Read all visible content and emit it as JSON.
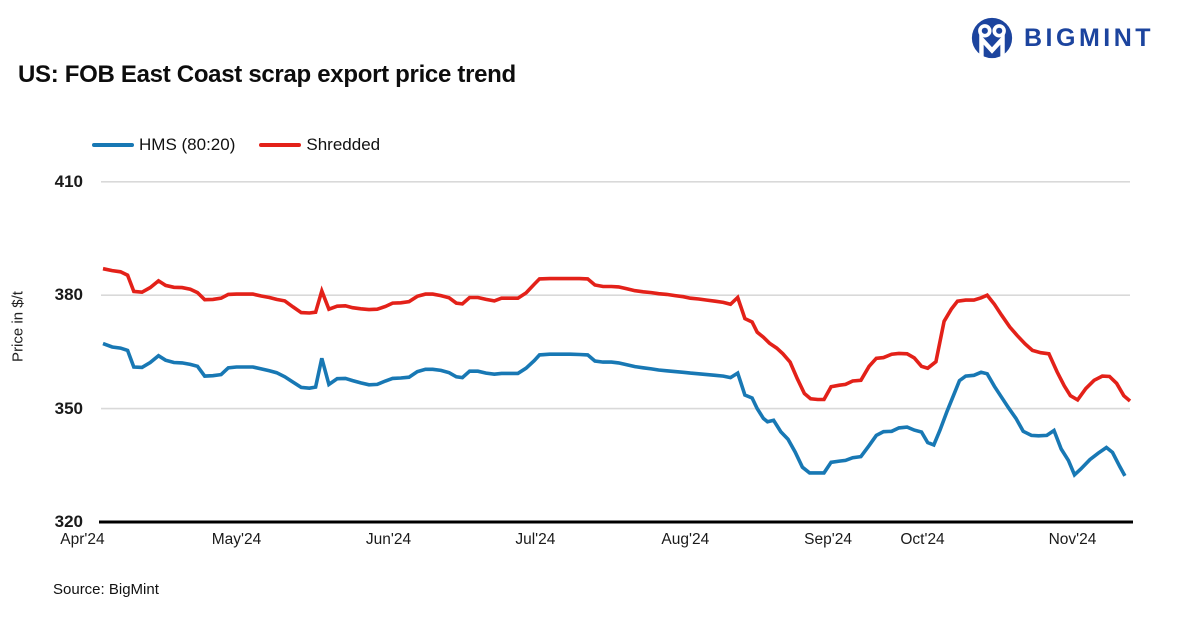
{
  "header": {
    "logo_text": "BIGMINT",
    "logo_color": "#1c449e"
  },
  "footer": {
    "source": "Source: BigMint"
  },
  "colors": {
    "hms_blue": "#1878b4",
    "shredded_red": "#e32119",
    "gridline": "#d9d9d9",
    "axis": "#000000"
  },
  "chart_data": {
    "type": "line",
    "title": "US: FOB East Coast scrap export price trend",
    "xlabel": "",
    "ylabel": "Price in $/t",
    "ylim": [
      320,
      410
    ],
    "grid": "horizontal",
    "legend_position": "top-left",
    "y_ticks": [
      410,
      380,
      350,
      320
    ],
    "x_ticks": [
      {
        "label": "Apr'24",
        "f": -0.02
      },
      {
        "label": "May'24",
        "f": 0.13
      },
      {
        "label": "Jun'24",
        "f": 0.278
      },
      {
        "label": "Jul'24",
        "f": 0.421
      },
      {
        "label": "Aug'24",
        "f": 0.567
      },
      {
        "label": "Sep'24",
        "f": 0.706
      },
      {
        "label": "Oct'24",
        "f": 0.798
      },
      {
        "label": "Nov'24",
        "f": 0.944
      }
    ],
    "series": [
      {
        "name": "HMS (80:20)",
        "color": "#1878b4",
        "points": [
          [
            0.0,
            367.2
          ],
          [
            0.009,
            366.3
          ],
          [
            0.017,
            366.0
          ],
          [
            0.024,
            365.4
          ],
          [
            0.03,
            361.0
          ],
          [
            0.038,
            360.9
          ],
          [
            0.046,
            362.2
          ],
          [
            0.054,
            364.0
          ],
          [
            0.061,
            362.8
          ],
          [
            0.069,
            362.2
          ],
          [
            0.077,
            362.1
          ],
          [
            0.085,
            361.7
          ],
          [
            0.092,
            361.2
          ],
          [
            0.099,
            358.6
          ],
          [
            0.107,
            358.7
          ],
          [
            0.115,
            359.0
          ],
          [
            0.122,
            360.8
          ],
          [
            0.13,
            361.0
          ],
          [
            0.138,
            361.0
          ],
          [
            0.146,
            361.0
          ],
          [
            0.154,
            360.5
          ],
          [
            0.162,
            360.0
          ],
          [
            0.169,
            359.5
          ],
          [
            0.177,
            358.4
          ],
          [
            0.185,
            357.0
          ],
          [
            0.193,
            355.6
          ],
          [
            0.201,
            355.4
          ],
          [
            0.207,
            355.7
          ],
          [
            0.213,
            363.3
          ],
          [
            0.22,
            356.4
          ],
          [
            0.228,
            357.9
          ],
          [
            0.236,
            358.0
          ],
          [
            0.243,
            357.4
          ],
          [
            0.251,
            356.8
          ],
          [
            0.259,
            356.3
          ],
          [
            0.267,
            356.4
          ],
          [
            0.275,
            357.3
          ],
          [
            0.282,
            358.0
          ],
          [
            0.29,
            358.1
          ],
          [
            0.298,
            358.3
          ],
          [
            0.306,
            359.8
          ],
          [
            0.314,
            360.4
          ],
          [
            0.321,
            360.4
          ],
          [
            0.329,
            360.1
          ],
          [
            0.337,
            359.5
          ],
          [
            0.344,
            358.4
          ],
          [
            0.35,
            358.2
          ],
          [
            0.357,
            359.9
          ],
          [
            0.365,
            359.9
          ],
          [
            0.373,
            359.4
          ],
          [
            0.381,
            359.1
          ],
          [
            0.388,
            359.3
          ],
          [
            0.396,
            359.3
          ],
          [
            0.404,
            359.3
          ],
          [
            0.412,
            360.7
          ],
          [
            0.42,
            362.7
          ],
          [
            0.425,
            364.2
          ],
          [
            0.435,
            364.4
          ],
          [
            0.445,
            364.4
          ],
          [
            0.455,
            364.4
          ],
          [
            0.464,
            364.3
          ],
          [
            0.472,
            364.2
          ],
          [
            0.479,
            362.6
          ],
          [
            0.487,
            362.3
          ],
          [
            0.495,
            362.3
          ],
          [
            0.502,
            362.1
          ],
          [
            0.51,
            361.6
          ],
          [
            0.518,
            361.1
          ],
          [
            0.526,
            360.8
          ],
          [
            0.534,
            360.5
          ],
          [
            0.541,
            360.2
          ],
          [
            0.549,
            360.0
          ],
          [
            0.557,
            359.8
          ],
          [
            0.565,
            359.6
          ],
          [
            0.572,
            359.4
          ],
          [
            0.58,
            359.2
          ],
          [
            0.588,
            359.0
          ],
          [
            0.596,
            358.8
          ],
          [
            0.604,
            358.6
          ],
          [
            0.611,
            358.2
          ],
          [
            0.618,
            359.4
          ],
          [
            0.625,
            353.6
          ],
          [
            0.632,
            352.8
          ],
          [
            0.637,
            350.0
          ],
          [
            0.643,
            347.4
          ],
          [
            0.647,
            346.5
          ],
          [
            0.653,
            346.9
          ],
          [
            0.66,
            343.9
          ],
          [
            0.667,
            341.9
          ],
          [
            0.674,
            338.5
          ],
          [
            0.681,
            334.5
          ],
          [
            0.688,
            333.0
          ],
          [
            0.696,
            333.0
          ],
          [
            0.702,
            333.0
          ],
          [
            0.709,
            335.8
          ],
          [
            0.717,
            336.1
          ],
          [
            0.723,
            336.3
          ],
          [
            0.73,
            337.0
          ],
          [
            0.738,
            337.3
          ],
          [
            0.746,
            340.2
          ],
          [
            0.753,
            342.9
          ],
          [
            0.76,
            343.9
          ],
          [
            0.768,
            344.0
          ],
          [
            0.775,
            344.9
          ],
          [
            0.783,
            345.1
          ],
          [
            0.79,
            344.3
          ],
          [
            0.797,
            343.8
          ],
          [
            0.803,
            341.0
          ],
          [
            0.809,
            340.4
          ],
          [
            0.815,
            344.3
          ],
          [
            0.822,
            349.4
          ],
          [
            0.828,
            353.4
          ],
          [
            0.834,
            357.4
          ],
          [
            0.84,
            358.6
          ],
          [
            0.848,
            358.8
          ],
          [
            0.855,
            359.6
          ],
          [
            0.861,
            359.2
          ],
          [
            0.868,
            355.9
          ],
          [
            0.875,
            353.0
          ],
          [
            0.882,
            350.1
          ],
          [
            0.889,
            347.4
          ],
          [
            0.896,
            344.0
          ],
          [
            0.904,
            342.9
          ],
          [
            0.911,
            342.8
          ],
          [
            0.919,
            342.9
          ],
          [
            0.926,
            344.2
          ],
          [
            0.933,
            339.3
          ],
          [
            0.94,
            336.3
          ],
          [
            0.946,
            332.5
          ],
          [
            0.952,
            334.0
          ],
          [
            0.961,
            336.5
          ],
          [
            0.969,
            338.2
          ],
          [
            0.977,
            339.7
          ],
          [
            0.983,
            338.4
          ],
          [
            0.99,
            334.7
          ],
          [
            0.995,
            332.2
          ]
        ]
      },
      {
        "name": "Shredded",
        "color": "#e32119",
        "points": [
          [
            0.0,
            387.0
          ],
          [
            0.009,
            386.5
          ],
          [
            0.017,
            386.2
          ],
          [
            0.024,
            385.3
          ],
          [
            0.03,
            381.0
          ],
          [
            0.038,
            380.8
          ],
          [
            0.046,
            382.0
          ],
          [
            0.054,
            383.8
          ],
          [
            0.061,
            382.6
          ],
          [
            0.069,
            382.1
          ],
          [
            0.077,
            382.0
          ],
          [
            0.085,
            381.6
          ],
          [
            0.092,
            380.7
          ],
          [
            0.099,
            378.8
          ],
          [
            0.107,
            378.9
          ],
          [
            0.115,
            379.2
          ],
          [
            0.122,
            380.2
          ],
          [
            0.13,
            380.3
          ],
          [
            0.138,
            380.3
          ],
          [
            0.146,
            380.3
          ],
          [
            0.154,
            379.8
          ],
          [
            0.162,
            379.4
          ],
          [
            0.169,
            378.9
          ],
          [
            0.177,
            378.5
          ],
          [
            0.185,
            376.9
          ],
          [
            0.193,
            375.4
          ],
          [
            0.201,
            375.3
          ],
          [
            0.207,
            375.5
          ],
          [
            0.213,
            381.1
          ],
          [
            0.22,
            376.3
          ],
          [
            0.228,
            377.1
          ],
          [
            0.236,
            377.2
          ],
          [
            0.243,
            376.7
          ],
          [
            0.251,
            376.4
          ],
          [
            0.259,
            376.2
          ],
          [
            0.267,
            376.3
          ],
          [
            0.275,
            377.0
          ],
          [
            0.282,
            377.9
          ],
          [
            0.29,
            378.0
          ],
          [
            0.298,
            378.3
          ],
          [
            0.306,
            379.7
          ],
          [
            0.314,
            380.3
          ],
          [
            0.321,
            380.3
          ],
          [
            0.329,
            379.9
          ],
          [
            0.337,
            379.3
          ],
          [
            0.344,
            377.9
          ],
          [
            0.35,
            377.7
          ],
          [
            0.357,
            379.4
          ],
          [
            0.365,
            379.4
          ],
          [
            0.373,
            378.9
          ],
          [
            0.381,
            378.5
          ],
          [
            0.388,
            379.2
          ],
          [
            0.396,
            379.2
          ],
          [
            0.404,
            379.2
          ],
          [
            0.412,
            380.6
          ],
          [
            0.42,
            382.9
          ],
          [
            0.425,
            384.3
          ],
          [
            0.435,
            384.4
          ],
          [
            0.445,
            384.4
          ],
          [
            0.455,
            384.4
          ],
          [
            0.464,
            384.4
          ],
          [
            0.472,
            384.3
          ],
          [
            0.479,
            382.7
          ],
          [
            0.487,
            382.3
          ],
          [
            0.495,
            382.3
          ],
          [
            0.502,
            382.2
          ],
          [
            0.51,
            381.7
          ],
          [
            0.518,
            381.2
          ],
          [
            0.526,
            380.9
          ],
          [
            0.534,
            380.7
          ],
          [
            0.541,
            380.4
          ],
          [
            0.549,
            380.2
          ],
          [
            0.557,
            379.9
          ],
          [
            0.565,
            379.6
          ],
          [
            0.572,
            379.2
          ],
          [
            0.58,
            379.0
          ],
          [
            0.588,
            378.7
          ],
          [
            0.596,
            378.4
          ],
          [
            0.604,
            378.1
          ],
          [
            0.611,
            377.6
          ],
          [
            0.618,
            379.4
          ],
          [
            0.625,
            373.8
          ],
          [
            0.632,
            372.9
          ],
          [
            0.637,
            370.2
          ],
          [
            0.643,
            368.9
          ],
          [
            0.649,
            367.3
          ],
          [
            0.656,
            366.0
          ],
          [
            0.662,
            364.5
          ],
          [
            0.669,
            362.3
          ],
          [
            0.676,
            357.9
          ],
          [
            0.683,
            354.0
          ],
          [
            0.689,
            352.6
          ],
          [
            0.696,
            352.4
          ],
          [
            0.702,
            352.4
          ],
          [
            0.709,
            355.8
          ],
          [
            0.717,
            356.2
          ],
          [
            0.723,
            356.4
          ],
          [
            0.73,
            357.3
          ],
          [
            0.738,
            357.5
          ],
          [
            0.746,
            361.2
          ],
          [
            0.753,
            363.3
          ],
          [
            0.76,
            363.5
          ],
          [
            0.768,
            364.4
          ],
          [
            0.775,
            364.6
          ],
          [
            0.783,
            364.5
          ],
          [
            0.79,
            363.4
          ],
          [
            0.797,
            361.2
          ],
          [
            0.803,
            360.7
          ],
          [
            0.811,
            362.4
          ],
          [
            0.819,
            373.1
          ],
          [
            0.826,
            376.3
          ],
          [
            0.832,
            378.4
          ],
          [
            0.84,
            378.7
          ],
          [
            0.848,
            378.7
          ],
          [
            0.855,
            379.3
          ],
          [
            0.861,
            380.0
          ],
          [
            0.868,
            377.6
          ],
          [
            0.875,
            374.7
          ],
          [
            0.883,
            371.6
          ],
          [
            0.89,
            369.4
          ],
          [
            0.898,
            367.1
          ],
          [
            0.905,
            365.4
          ],
          [
            0.913,
            364.8
          ],
          [
            0.921,
            364.5
          ],
          [
            0.929,
            359.7
          ],
          [
            0.936,
            356.0
          ],
          [
            0.942,
            353.4
          ],
          [
            0.949,
            352.3
          ],
          [
            0.957,
            355.3
          ],
          [
            0.965,
            357.5
          ],
          [
            0.973,
            358.6
          ],
          [
            0.98,
            358.5
          ],
          [
            0.987,
            356.7
          ],
          [
            0.994,
            353.4
          ],
          [
            1.0,
            352.0
          ]
        ]
      }
    ]
  }
}
